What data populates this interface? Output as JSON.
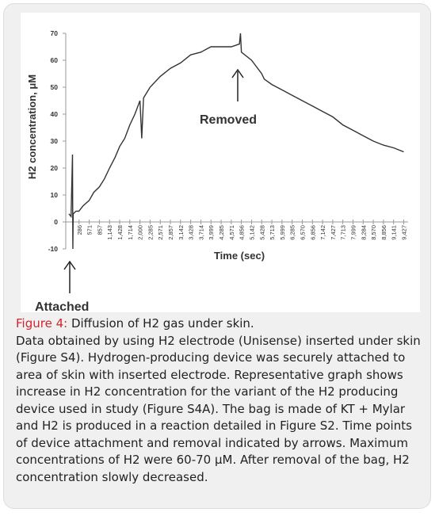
{
  "chart_data": {
    "type": "line",
    "y_label": "H2 concentration, μM",
    "x_label": "Time (sec)",
    "annotations": [
      "Removed",
      "Attached"
    ],
    "series": [
      {
        "name": "H2 concentration",
        "color": "#333333",
        "x": [
          0,
          60,
          100,
          110,
          120,
          200,
          280,
          400,
          571,
          700,
          857,
          1000,
          1143,
          1300,
          1428,
          1571,
          1714,
          1857,
          2000,
          2050,
          2100,
          2285,
          2571,
          2857,
          3142,
          3428,
          3714,
          3999,
          4285,
          4571,
          4800,
          4830,
          4856,
          5142,
          5428,
          5500,
          5713,
          5999,
          6285,
          6570,
          6856,
          7142,
          7427,
          7713,
          7999,
          8284,
          8570,
          8856,
          9141,
          9427
        ],
        "values": [
          3,
          2,
          25,
          -10,
          3,
          4,
          4,
          6,
          8,
          11,
          13,
          16,
          20,
          24,
          28,
          31,
          36,
          40,
          45,
          31,
          46,
          50,
          54,
          57,
          59,
          62,
          63,
          65,
          65,
          65,
          66,
          70,
          63,
          60,
          55,
          53,
          51,
          49,
          47,
          45,
          43,
          41,
          39,
          36,
          34,
          32,
          30,
          28.5,
          27.5,
          26
        ]
      }
    ],
    "xlim": [
      0,
      9550
    ],
    "ylim": [
      -10,
      70
    ],
    "yticks": [
      -10,
      0,
      10,
      20,
      30,
      40,
      50,
      60,
      70
    ],
    "xticks": [
      286,
      571,
      857,
      {
        "value": 1143,
        "label": "1,143"
      },
      {
        "value": 1428,
        "label": "1,428"
      },
      {
        "value": 1714,
        "label": "1,714"
      },
      {
        "value": 2000,
        "label": "2,000"
      },
      {
        "value": 2285,
        "label": "2,285"
      },
      {
        "value": 2571,
        "label": "2,571"
      },
      {
        "value": 2857,
        "label": "2,857"
      },
      {
        "value": 3142,
        "label": "3,142"
      },
      {
        "value": 3428,
        "label": "3,428"
      },
      {
        "value": 3714,
        "label": "3,714"
      },
      {
        "value": 3999,
        "label": "3,999"
      },
      {
        "value": 4285,
        "label": "4,285"
      },
      {
        "value": 4571,
        "label": "4,571"
      },
      {
        "value": 4856,
        "label": "4,856"
      },
      {
        "value": 5142,
        "label": "5,142"
      },
      {
        "value": 5428,
        "label": "5,428"
      },
      {
        "value": 5713,
        "label": "5,713"
      },
      {
        "value": 5999,
        "label": "5,999"
      },
      {
        "value": 6285,
        "label": "6,285"
      },
      {
        "value": 6570,
        "label": "6,570"
      },
      {
        "value": 6856,
        "label": "6,856"
      },
      {
        "value": 7142,
        "label": "7,142"
      },
      {
        "value": 7427,
        "label": "7,427"
      },
      {
        "value": 7713,
        "label": "7,713"
      },
      {
        "value": 7999,
        "label": "7,999"
      },
      {
        "value": 8284,
        "label": "8,284"
      },
      {
        "value": 8570,
        "label": "8,570"
      },
      {
        "value": 8856,
        "label": "8,856"
      },
      {
        "value": 9141,
        "label": "9,141"
      },
      {
        "value": 9427,
        "label": "9,427"
      }
    ]
  },
  "caption": {
    "label": "Figure 4:",
    "title": "Diffusion of H2 gas under skin.",
    "body": "Data obtained by using H2 electrode (Unisense) inserted under skin (Figure S4). Hydrogen-producing device was securely attached to area of skin with inserted electrode. Representative graph shows increase in H2 concentration for the variant of the H2 producing device used in study (Figure S4A). The bag is made of KT + Mylar and H2 is produced in a reaction detailed in Figure S2. Time points of device attachment and removal indicated by arrows. Maximum concentrations of H2 were 60-70 μM. After removal of the bag, H2 concentration slowly decreased."
  }
}
